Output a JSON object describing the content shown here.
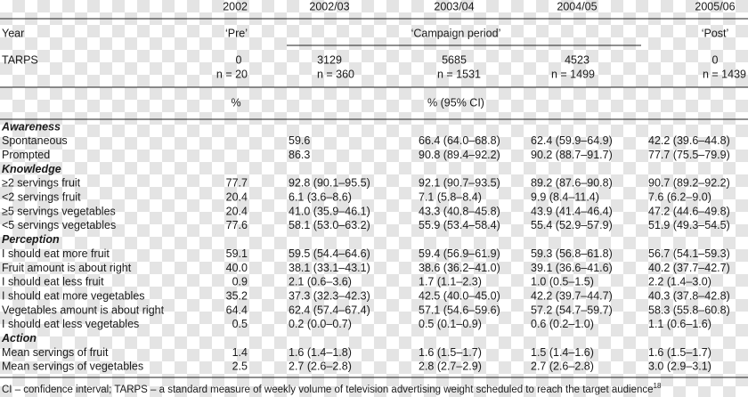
{
  "header": {
    "year_label": "Year",
    "years": [
      "2002",
      "2002/03",
      "2003/04",
      "2004/05",
      "2005/06"
    ],
    "periods": [
      "‘Pre’",
      "‘Campaign period’",
      "‘Post’"
    ],
    "tarps_label": "TARPS",
    "tarps": [
      "0",
      "3129",
      "5685",
      "4523",
      "0"
    ],
    "n": [
      "n = 20",
      "n = 360",
      "n = 1531",
      "n = 1499",
      "n = 1439"
    ],
    "units": [
      "%",
      "% (95% CI)"
    ]
  },
  "sections": [
    {
      "title": "Awareness",
      "rows": [
        {
          "label": "Spontaneous",
          "values": [
            null,
            "59.6",
            "66.4 (64.0–68.8)",
            "62.4 (59.9–64.9)",
            "42.2 (39.6–44.8)"
          ]
        },
        {
          "label": "Prompted",
          "values": [
            null,
            "86.3",
            "90.8 (89.4–92.2)",
            "90.2 (88.7–91.7)",
            "77.7 (75.5–79.9)"
          ]
        }
      ]
    },
    {
      "title": "Knowledge",
      "rows": [
        {
          "label": "≥2 servings fruit",
          "values": [
            "77.7",
            "92.8 (90.1–95.5)",
            "92.1 (90.7–93.5)",
            "89.2 (87.6–90.8)",
            "90.7 (89.2–92.2)"
          ]
        },
        {
          "label": "<2 servings fruit",
          "values": [
            "20.4",
            "6.1 (3.6–8.6)",
            "7.1 (5.8–8.4)",
            "9.9 (8.4–11.4)",
            "7.6 (6.2–9.0)"
          ]
        },
        {
          "label": "≥5 servings vegetables",
          "values": [
            "20.4",
            "41.0 (35.9–46.1)",
            "43.3 (40.8–45.8)",
            "43.9 (41.4–46.4)",
            "47.2 (44.6–49.8)"
          ]
        },
        {
          "label": "<5 servings vegetables",
          "values": [
            "77.6",
            "58.1 (53.0–63.2)",
            "55.9 (53.4–58.4)",
            "55.4 (52.9–57.9)",
            "51.9 (49.3–54.5)"
          ]
        }
      ]
    },
    {
      "title": "Perception",
      "rows": [
        {
          "label": "I should eat more fruit",
          "values": [
            "59.1",
            "59.5 (54.4–64.6)",
            "59.4 (56.9–61.9)",
            "59.3 (56.8–61.8)",
            "56.7 (54.1–59.3)"
          ]
        },
        {
          "label": "Fruit amount is about right",
          "values": [
            "40.0",
            "38.1 (33.1–43.1)",
            "38.6 (36.2–41.0)",
            "39.1 (36.6–41.6)",
            "40.2 (37.7–42.7)"
          ]
        },
        {
          "label": "I should eat less fruit",
          "values": [
            "0.9",
            "2.1 (0.6–3.6)",
            "1.7 (1.1–2.3)",
            "1.0 (0.5–1.5)",
            "2.2 (1.4–3.0)"
          ]
        },
        {
          "label": "I should eat more vegetables",
          "values": [
            "35.2",
            "37.3 (32.3–42.3)",
            "42.5 (40.0–45.0)",
            "42.2 (39.7–44.7)",
            "40.3 (37.8–42.8)"
          ]
        },
        {
          "label": "Vegetables amount is about right",
          "values": [
            "64.4",
            "62.4 (57.4–67.4)",
            "57.1 (54.6–59.6)",
            "57.2 (54.7–59.7)",
            "58.3 (55.8–60.8)"
          ]
        },
        {
          "label": "I should eat less vegetables",
          "values": [
            "0.5",
            "0.2 (0.0–0.7)",
            "0.5 (0.1–0.9)",
            "0.6 (0.2–1.0)",
            "1.1 (0.6–1.6)"
          ]
        }
      ]
    },
    {
      "title": "Action",
      "rows": [
        {
          "label": "Mean servings of fruit",
          "values": [
            "1.4",
            "1.6 (1.4–1.8)",
            "1.6 (1.5–1.7)",
            "1.5 (1.4–1.6)",
            "1.6 (1.5–1.7)"
          ]
        },
        {
          "label": "Mean servings of vegetables",
          "values": [
            "2.5",
            "2.7 (2.6–2.8)",
            "2.8 (2.7–2.9)",
            "2.7 (2.6–2.8)",
            "3.0 (2.9–3.1)"
          ]
        }
      ]
    }
  ],
  "footnote": {
    "text": "CI – confidence interval; TARPS – a standard measure of weekly volume of television advertising weight scheduled to reach the target audience",
    "ref": "18"
  }
}
